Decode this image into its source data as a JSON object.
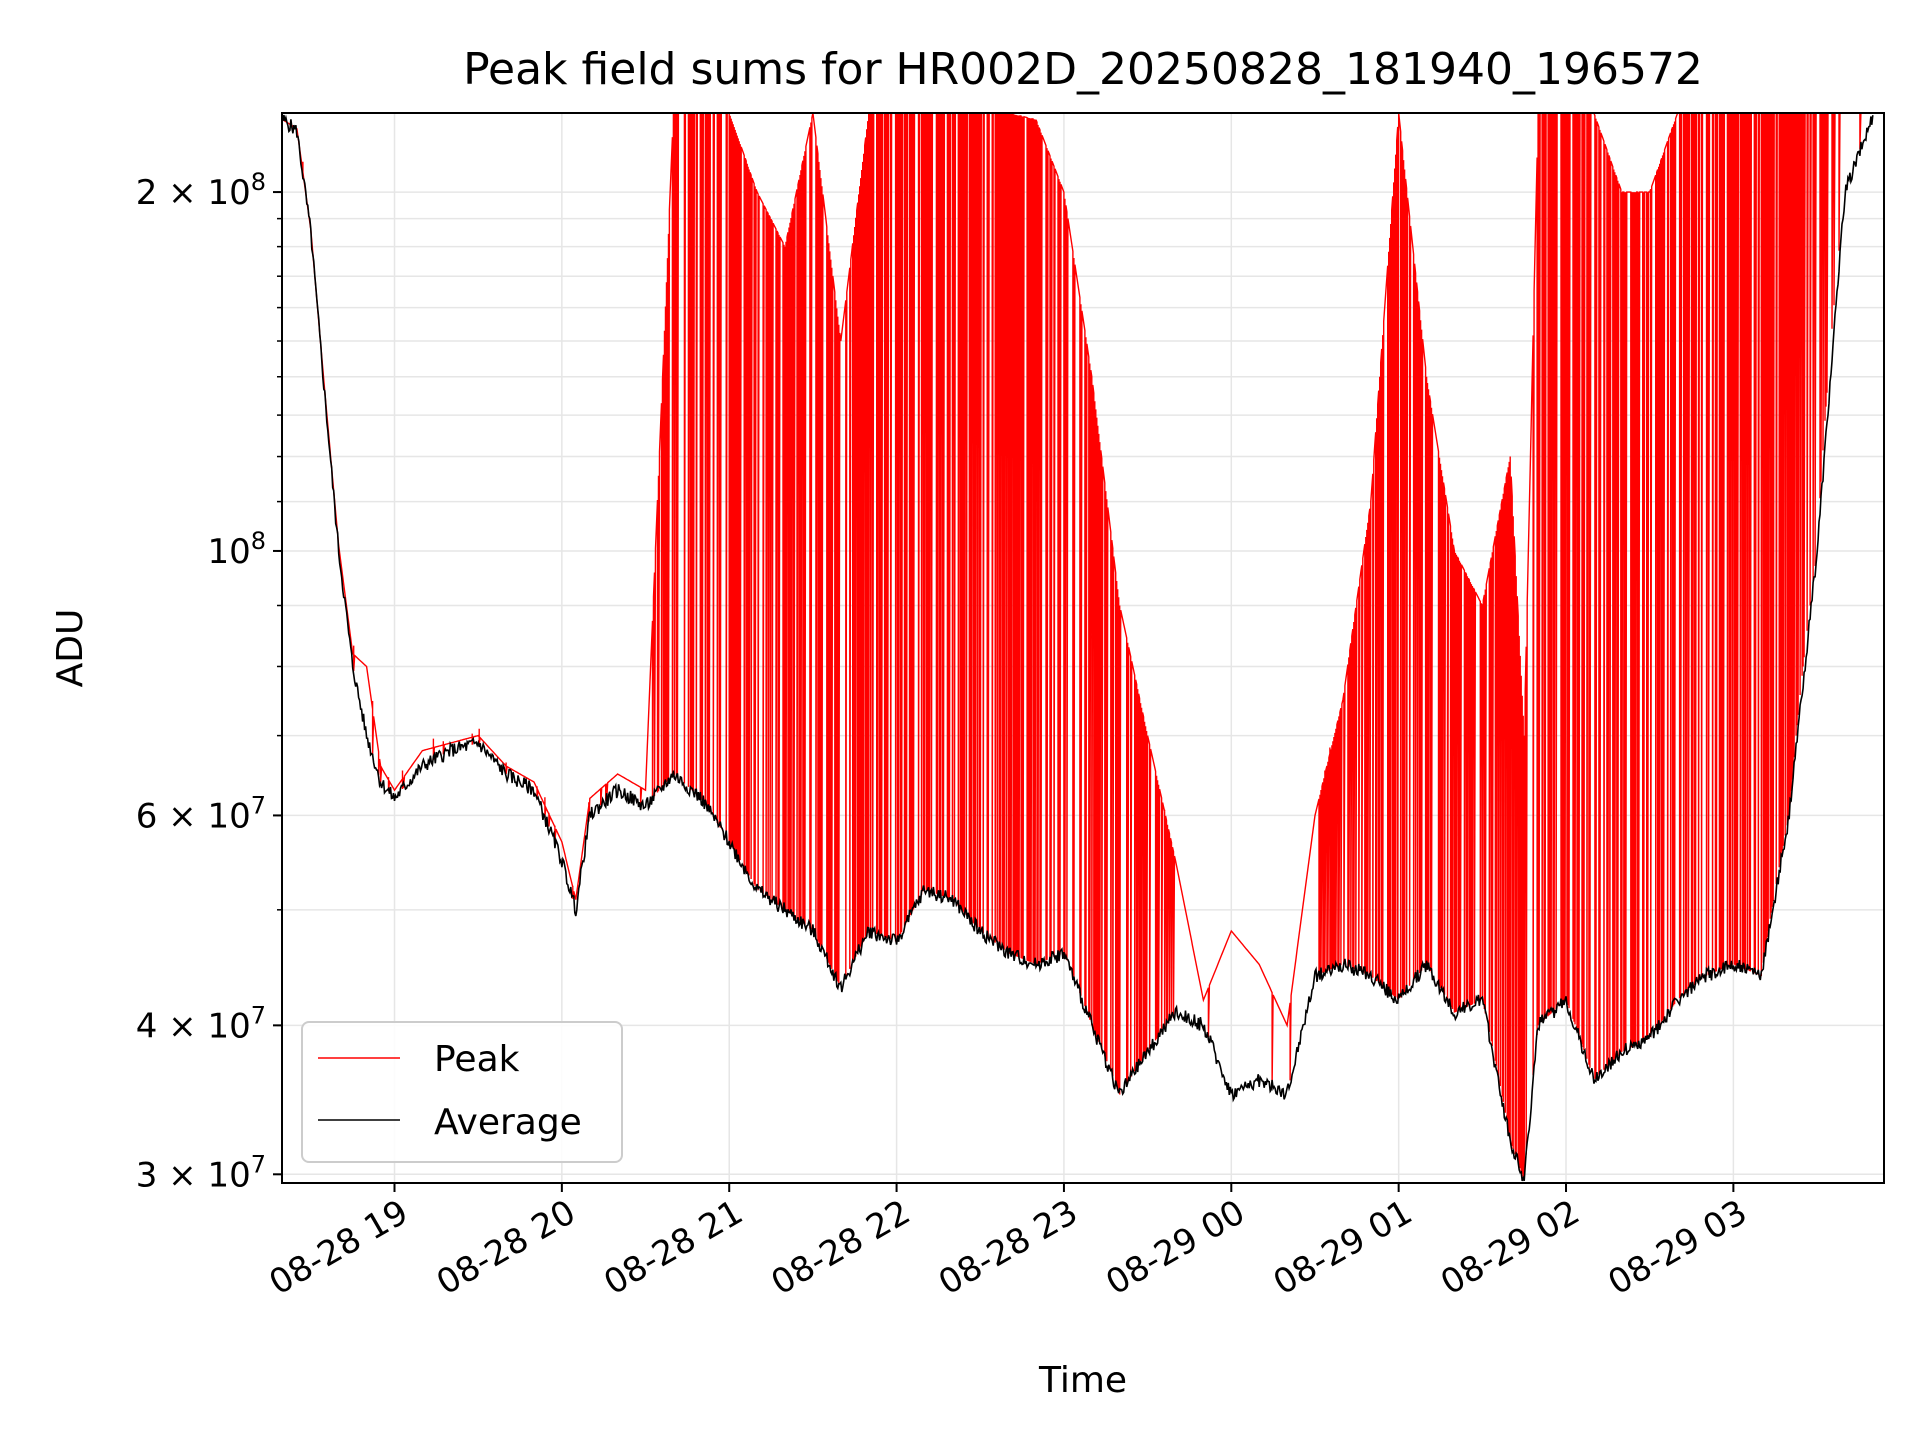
{
  "chart_data": {
    "type": "line",
    "title": "Peak field sums for HR002D_20250828_181940_196572",
    "xlabel": "Time",
    "ylabel": "ADU",
    "yscale": "log",
    "ylim": [
      29500000,
      233000000
    ],
    "xlim": [
      "2025-08-28 18:19:40",
      "2025-08-29 03:54:00"
    ],
    "grid": true,
    "legend_position": "lower-left",
    "x_ticks": [
      "08-28 19",
      "08-28 20",
      "08-28 21",
      "08-28 22",
      "08-28 23",
      "08-29 00",
      "08-29 01",
      "08-29 02",
      "08-29 03"
    ],
    "y_ticks": [
      {
        "base": "3",
        "exp": "7",
        "value": 30000000
      },
      {
        "base": "4",
        "exp": "7",
        "value": 40000000
      },
      {
        "base": "6",
        "exp": "7",
        "value": 60000000
      },
      {
        "base": "",
        "exp": "8",
        "value": 100000000
      },
      {
        "base": "2",
        "exp": "8",
        "value": 200000000
      }
    ],
    "times_label": "HH:MM",
    "times": [
      "18:20",
      "18:25",
      "18:30",
      "18:35",
      "18:40",
      "18:45",
      "18:50",
      "18:55",
      "19:00",
      "19:10",
      "19:20",
      "19:30",
      "19:40",
      "19:50",
      "20:00",
      "20:05",
      "20:10",
      "20:20",
      "20:30",
      "20:40",
      "20:50",
      "21:00",
      "21:10",
      "21:20",
      "21:30",
      "21:40",
      "21:50",
      "22:00",
      "22:10",
      "22:20",
      "22:30",
      "22:40",
      "22:50",
      "23:00",
      "23:10",
      "23:20",
      "23:30",
      "23:40",
      "23:50",
      "00:00",
      "00:10",
      "00:20",
      "00:30",
      "00:40",
      "00:50",
      "01:00",
      "01:10",
      "01:20",
      "01:30",
      "01:40",
      "01:45",
      "01:50",
      "02:00",
      "02:10",
      "02:20",
      "02:30",
      "02:40",
      "02:50",
      "03:00",
      "03:10",
      "03:20",
      "03:30",
      "03:40",
      "03:50"
    ],
    "series": [
      {
        "name": "Average",
        "color": "#000000",
        "values": [
          230000000,
          225000000,
          185000000,
          135000000,
          100000000,
          80000000,
          70000000,
          64000000,
          62000000,
          66000000,
          68000000,
          69000000,
          65000000,
          63000000,
          55000000,
          50000000,
          60000000,
          63000000,
          61000000,
          65000000,
          62000000,
          57000000,
          52000000,
          50000000,
          48000000,
          43000000,
          48000000,
          47000000,
          52000000,
          51000000,
          48000000,
          46000000,
          45000000,
          46000000,
          40000000,
          35000000,
          38000000,
          41000000,
          40000000,
          35000000,
          36000000,
          35000000,
          44000000,
          45000000,
          44000000,
          42000000,
          45000000,
          41000000,
          42000000,
          32000000,
          29700000,
          40000000,
          42000000,
          36000000,
          38000000,
          39000000,
          42000000,
          44000000,
          45000000,
          44000000,
          60000000,
          100000000,
          200000000,
          232000000
        ]
      },
      {
        "name": "Peak",
        "color": "#ff0000",
        "values": [
          230000000,
          226000000,
          186000000,
          136000000,
          101000000,
          82000000,
          80000000,
          66000000,
          63000000,
          68000000,
          69000000,
          70000000,
          66000000,
          64000000,
          57000000,
          51000000,
          62000000,
          65000000,
          63000000,
          233000000,
          233000000,
          233000000,
          200000000,
          180000000,
          233000000,
          150000000,
          233000000,
          233000000,
          233000000,
          233000000,
          233000000,
          233000000,
          230000000,
          200000000,
          140000000,
          90000000,
          70000000,
          55000000,
          42000000,
          48000000,
          45000000,
          40000000,
          60000000,
          75000000,
          110000000,
          233000000,
          140000000,
          100000000,
          90000000,
          120000000,
          70000000,
          233000000,
          233000000,
          233000000,
          200000000,
          200000000,
          233000000,
          233000000,
          233000000,
          233000000,
          233000000,
          233000000,
          233000000,
          233000000
        ]
      }
    ]
  }
}
